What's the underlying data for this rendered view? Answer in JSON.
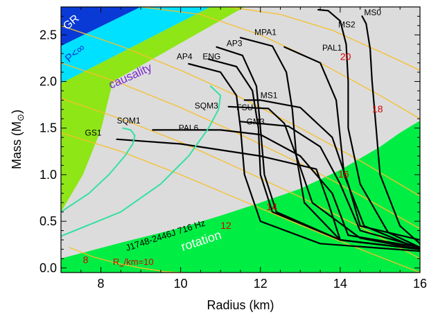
{
  "chart_data": {
    "type": "line",
    "xlabel": "Radius (km)",
    "ylabel": "Mass (M",
    "ylabel_symbol": "⊙",
    "ylabel_close": ")",
    "xlim": [
      7,
      16
    ],
    "ylim": [
      -0.05,
      2.8
    ],
    "x_ticks": [
      8,
      10,
      12,
      14,
      16
    ],
    "x_tick_labels": [
      "8",
      "10",
      "12",
      "14",
      "16"
    ],
    "y_ticks": [
      0.0,
      0.5,
      1.0,
      1.5,
      2.0,
      2.5
    ],
    "y_tick_labels": [
      "0.0",
      "0.5",
      "1.0",
      "1.5",
      "2.0",
      "2.5"
    ],
    "grid": false,
    "colors": {
      "gr": "#0a3ad6",
      "finite_pressure": "#00e1ff",
      "causality": "#8ee617",
      "allowed": "#dcdcdc",
      "rotation": "#00ee44",
      "eos_curve": "#000000",
      "strange_quark_curve": "#33e0a0",
      "radiation_radius": "#f7bf2a",
      "radiation_label": "#d80000"
    },
    "regions": [
      {
        "name": "GR",
        "label": "GR",
        "color": "gr",
        "boundary_x": [
          7.0,
          7.0,
          9.0,
          7.9
        ],
        "boundary_y": [
          2.8,
          2.38,
          2.8,
          2.8
        ]
      },
      {
        "name": "P<∞",
        "label": "P<∞",
        "color": "finite_pressure",
        "boundary_x": [
          7.0,
          9.0,
          10.75,
          7.0
        ],
        "boundary_y": [
          2.38,
          2.8,
          2.8,
          1.98
        ]
      },
      {
        "name": "causality",
        "label": "causality",
        "color": "causality",
        "boundary_x": [
          7.0,
          7.0,
          10.75,
          11.6,
          8.3,
          8.0,
          7.55,
          7.0
        ],
        "boundary_y": [
          -0.05,
          1.98,
          2.8,
          2.8,
          2.0,
          1.48,
          1.0,
          0.6
        ]
      },
      {
        "name": "rotation",
        "label": "rotation",
        "color": "rotation",
        "boundary_x": [
          7.0,
          7.0,
          8.5,
          10.0,
          11.0,
          12.0,
          13.0,
          14.0,
          15.0,
          15.5,
          16.0,
          16.0
        ],
        "boundary_y": [
          -0.05,
          0.1,
          0.27,
          0.43,
          0.56,
          0.7,
          0.85,
          1.05,
          1.3,
          1.45,
          1.58,
          -0.05
        ]
      }
    ],
    "annotations": [
      {
        "text": "J1748-2446J 716 Hz",
        "x": 8.65,
        "y": 0.18,
        "rotate": -18,
        "color": "#000000"
      },
      {
        "text": "R",
        "sub": "∞",
        "suffix": "/km=10",
        "x": 8.3,
        "y": 0.03,
        "color": "#d80000"
      }
    ],
    "radiation_radius_lines": [
      {
        "label": "8",
        "label_x": 7.55,
        "label_y": 0.05,
        "x": [
          7.2,
          7.8,
          8.4,
          9.0,
          9.6,
          10.1
        ],
        "y": [
          0.22,
          0.12,
          0.05,
          0.0,
          -0.04,
          -0.05
        ]
      },
      {
        "label": "12",
        "label_x": 11.0,
        "label_y": 0.42,
        "x": [
          7.0,
          8.5,
          10.0,
          11.5,
          13.0,
          14.5,
          16.0
        ],
        "y": [
          1.45,
          1.25,
          1.0,
          0.73,
          0.46,
          0.2,
          -0.05
        ]
      },
      {
        "label": "14",
        "label_x": 12.15,
        "label_y": 0.62,
        "x": [
          7.0,
          8.5,
          10.0,
          11.5,
          13.0,
          14.5,
          16.0
        ],
        "y": [
          1.82,
          1.6,
          1.35,
          1.06,
          0.76,
          0.44,
          0.1
        ]
      },
      {
        "label": "16",
        "label_x": 13.95,
        "label_y": 0.97,
        "x": [
          7.0,
          8.5,
          10.0,
          11.5,
          13.0,
          14.5,
          16.0
        ],
        "y": [
          2.2,
          1.98,
          1.72,
          1.43,
          1.12,
          0.78,
          0.42
        ]
      },
      {
        "label": "18",
        "label_x": 14.8,
        "label_y": 1.67,
        "x": [
          7.0,
          8.5,
          10.0,
          11.5,
          13.0,
          14.5,
          16.0
        ],
        "y": [
          2.6,
          2.38,
          2.12,
          1.83,
          1.5,
          1.15,
          0.77
        ]
      },
      {
        "label": "20",
        "label_x": 14.0,
        "label_y": 2.23,
        "x": [
          9.0,
          10.5,
          12.0,
          13.5,
          15.0,
          16.0
        ],
        "y": [
          2.8,
          2.72,
          2.5,
          2.2,
          1.85,
          1.6
        ]
      },
      {
        "label": "",
        "x": [
          11.2,
          12.5,
          13.8,
          15.0,
          16.0
        ],
        "y": [
          2.8,
          2.72,
          2.55,
          2.32,
          2.12
        ]
      }
    ],
    "series": [
      {
        "name": "MS0",
        "label_x": 14.6,
        "label_y": 2.71,
        "style": "eos",
        "x": [
          16.0,
          15.5,
          15.0,
          14.9,
          14.8,
          14.75,
          14.65,
          14.55
        ],
        "y": [
          0.26,
          0.45,
          1.0,
          1.5,
          2.0,
          2.35,
          2.62,
          2.7
        ]
      },
      {
        "name": "MS2",
        "label_x": 13.95,
        "label_y": 2.58,
        "style": "eos",
        "x": [
          16.0,
          15.2,
          14.5,
          14.2,
          14.2,
          14.15,
          14.0,
          13.7,
          13.45
        ],
        "y": [
          0.22,
          0.38,
          0.9,
          1.5,
          2.0,
          2.4,
          2.65,
          2.76,
          2.77
        ]
      },
      {
        "name": "PAL1",
        "label_x": 13.55,
        "label_y": 2.33,
        "style": "eos",
        "x": [
          16.0,
          14.6,
          14.1,
          14.0,
          13.9,
          13.5,
          12.6
        ],
        "y": [
          0.2,
          0.45,
          1.0,
          1.4,
          1.8,
          2.2,
          2.37
        ]
      },
      {
        "name": "MPA1",
        "label_x": 11.85,
        "label_y": 2.5,
        "style": "eos",
        "x": [
          16.0,
          14.5,
          13.3,
          12.9,
          12.8,
          12.65,
          12.3,
          11.5
        ],
        "y": [
          0.2,
          0.32,
          0.7,
          1.2,
          1.7,
          2.1,
          2.38,
          2.47
        ]
      },
      {
        "name": "AP3",
        "label_x": 11.15,
        "label_y": 2.38,
        "style": "eos",
        "x": [
          16.0,
          14.0,
          12.4,
          12.1,
          12.0,
          11.9,
          11.55,
          10.9
        ],
        "y": [
          0.2,
          0.3,
          0.6,
          1.0,
          1.5,
          1.95,
          2.28,
          2.37
        ]
      },
      {
        "name": "ENG",
        "label_x": 10.55,
        "label_y": 2.24,
        "style": "eos",
        "x": [
          16.0,
          14.0,
          12.3,
          12.0,
          11.95,
          11.8,
          11.4,
          10.7
        ],
        "y": [
          0.2,
          0.3,
          0.6,
          1.0,
          1.5,
          1.9,
          2.16,
          2.24
        ]
      },
      {
        "name": "AP4",
        "label_x": 9.9,
        "label_y": 2.24,
        "style": "eos",
        "x": [
          16.0,
          13.5,
          12.0,
          11.6,
          11.5,
          11.4,
          11.0,
          10.2
        ],
        "y": [
          0.18,
          0.26,
          0.5,
          1.0,
          1.5,
          1.85,
          2.1,
          2.19
        ]
      },
      {
        "name": "MS1",
        "label_x": 12.0,
        "label_y": 1.82,
        "style": "eos",
        "x": [
          16.0,
          14.5,
          14.2,
          13.8,
          13.0,
          12.0,
          11.6
        ],
        "y": [
          0.3,
          0.45,
          0.9,
          1.4,
          1.72,
          1.8,
          1.8
        ]
      },
      {
        "name": "FSU",
        "label_x": 11.4,
        "label_y": 1.69,
        "style": "eos",
        "x": [
          16.0,
          14.0,
          13.1,
          12.9,
          12.6,
          12.2,
          11.2
        ],
        "y": [
          0.2,
          0.3,
          0.7,
          1.2,
          1.55,
          1.71,
          1.73
        ]
      },
      {
        "name": "GM3",
        "label_x": 11.65,
        "label_y": 1.54,
        "style": "eos",
        "x": [
          16.0,
          14.5,
          14.0,
          13.5,
          12.7,
          11.5
        ],
        "y": [
          0.22,
          0.4,
          0.9,
          1.3,
          1.52,
          1.57
        ]
      },
      {
        "name": "PAL6",
        "label_x": 9.95,
        "label_y": 1.47,
        "style": "eos",
        "x": [
          16.0,
          14.2,
          13.8,
          13.0,
          12.0,
          11.0,
          9.3
        ],
        "y": [
          0.22,
          0.35,
          0.8,
          1.2,
          1.43,
          1.48,
          1.48
        ]
      },
      {
        "name": "GS1",
        "label_x": 7.6,
        "label_y": 1.42,
        "style": "eos",
        "x": [
          16.0,
          14.0,
          13.7,
          13.4,
          12.0,
          10.0,
          8.4
        ],
        "y": [
          0.2,
          0.3,
          0.7,
          1.06,
          1.2,
          1.33,
          1.38
        ]
      },
      {
        "name": "SQM3",
        "label_x": 10.35,
        "label_y": 1.71,
        "style": "quark",
        "x": [
          7.0,
          8.5,
          9.5,
          10.2,
          10.7,
          10.95,
          11.0,
          10.75
        ],
        "y": [
          0.34,
          0.6,
          0.9,
          1.2,
          1.5,
          1.7,
          1.85,
          1.95
        ]
      },
      {
        "name": "SQM1",
        "label_x": 8.4,
        "label_y": 1.55,
        "style": "quark",
        "x": [
          7.0,
          7.7,
          8.2,
          8.6,
          8.8,
          8.85,
          8.75,
          8.55
        ],
        "y": [
          0.6,
          0.8,
          1.0,
          1.2,
          1.33,
          1.42,
          1.48,
          1.5
        ]
      }
    ]
  }
}
